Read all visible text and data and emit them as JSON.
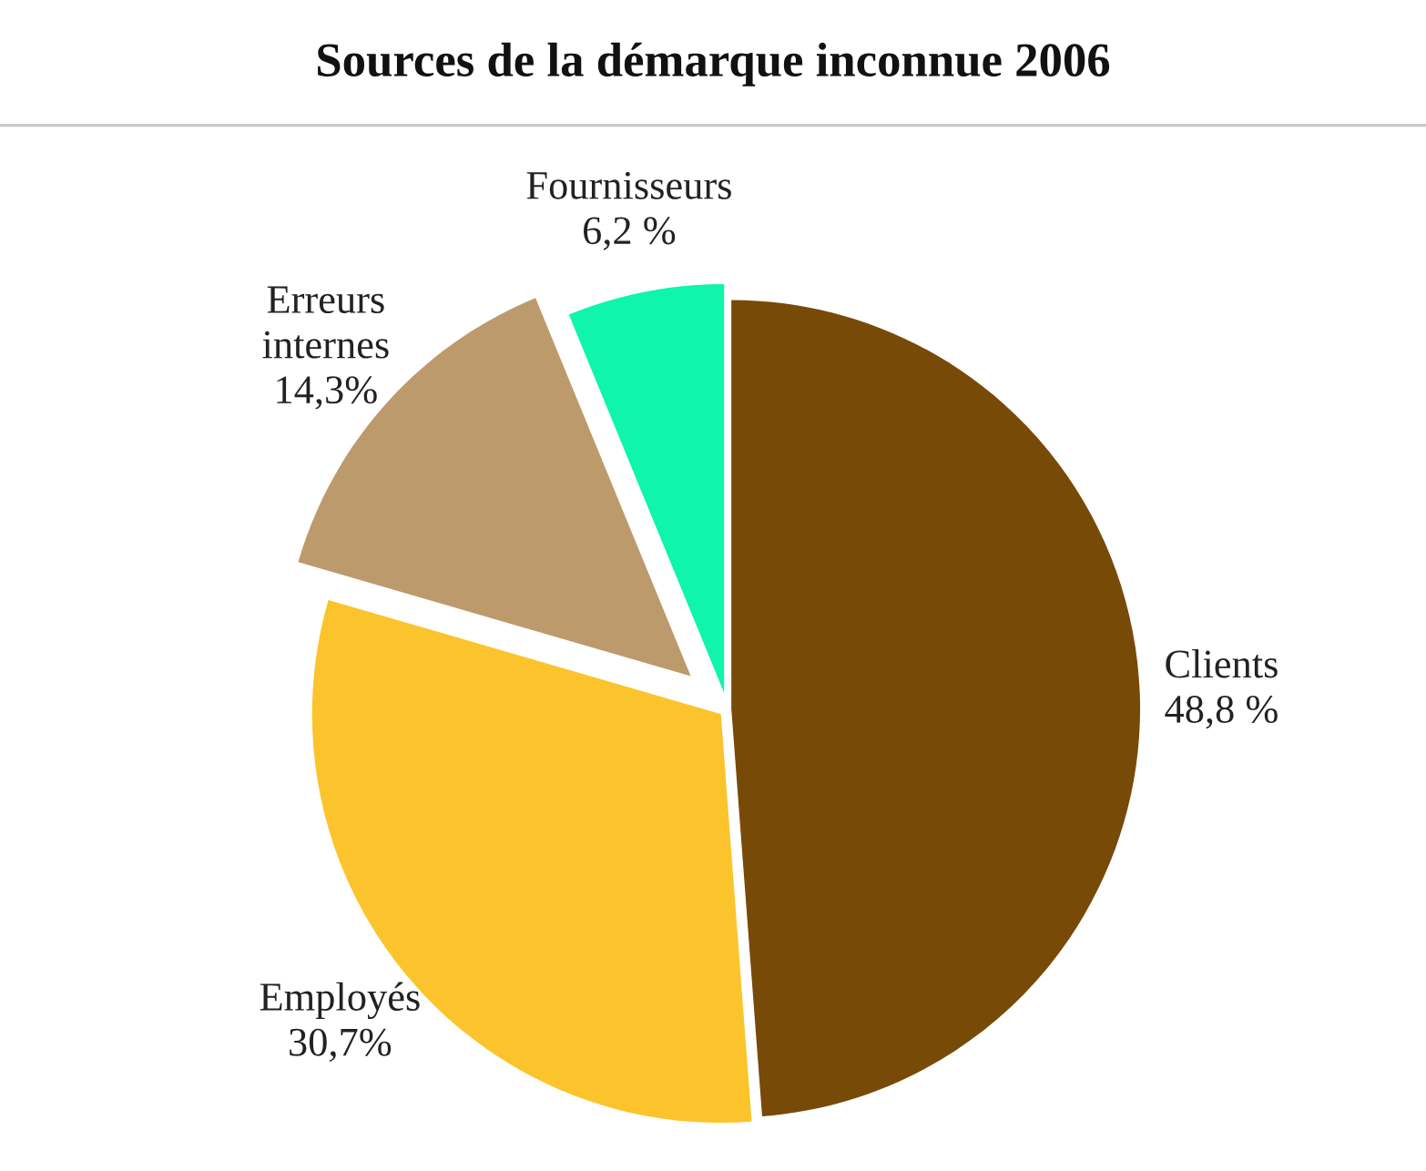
{
  "chart_data": {
    "type": "pie",
    "title": "Sources de la démarque inconnue 2006",
    "categories": [
      "Clients",
      "Employés",
      "Erreurs internes",
      "Fournisseurs"
    ],
    "values": [
      48.8,
      30.7,
      14.3,
      6.2
    ],
    "value_labels": [
      "48,8 %",
      "30,7%",
      "14,3%",
      "6,2 %"
    ],
    "colors": [
      "#784a08",
      "#fcc42c",
      "#bd9a6c",
      "#0ff5ab"
    ],
    "legend": false
  }
}
